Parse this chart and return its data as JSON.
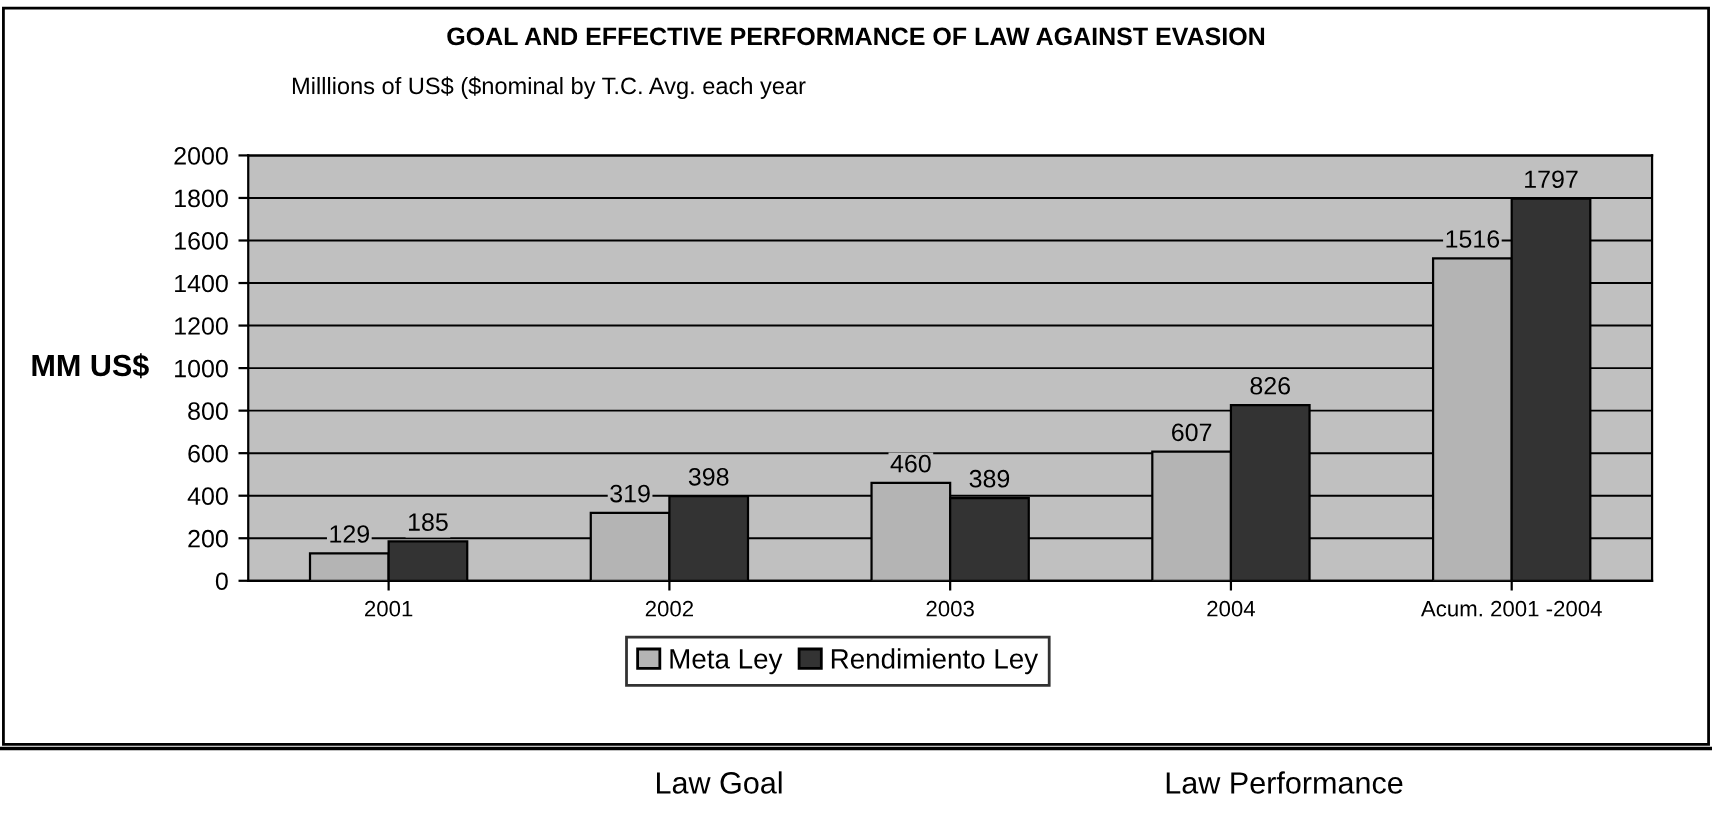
{
  "chart_data": {
    "type": "bar",
    "title": "GOAL AND EFFECTIVE PERFORMANCE OF LAW AGAINST EVASION",
    "subtitle": "Milllions of US$ ($nominal by T.C. Avg. each year",
    "ylabel": "MM US$",
    "categories": [
      "2001",
      "2002",
      "2003",
      "2004",
      "Acum. 2001 -2004"
    ],
    "series": [
      {
        "name": "Meta Ley",
        "color": "#b4b4b4",
        "values": [
          129,
          319,
          460,
          607,
          1516
        ]
      },
      {
        "name": "Rendimiento Ley",
        "color": "#333333",
        "values": [
          185,
          398,
          389,
          826,
          1797
        ]
      }
    ],
    "ylim": [
      0,
      2000
    ],
    "yticks": [
      0,
      200,
      400,
      600,
      800,
      1000,
      1200,
      1400,
      1600,
      1800,
      2000
    ],
    "grid": "y",
    "legend": "bottom",
    "data_labels": true,
    "annotations": [
      "Law Goal",
      "Law Performance"
    ]
  }
}
